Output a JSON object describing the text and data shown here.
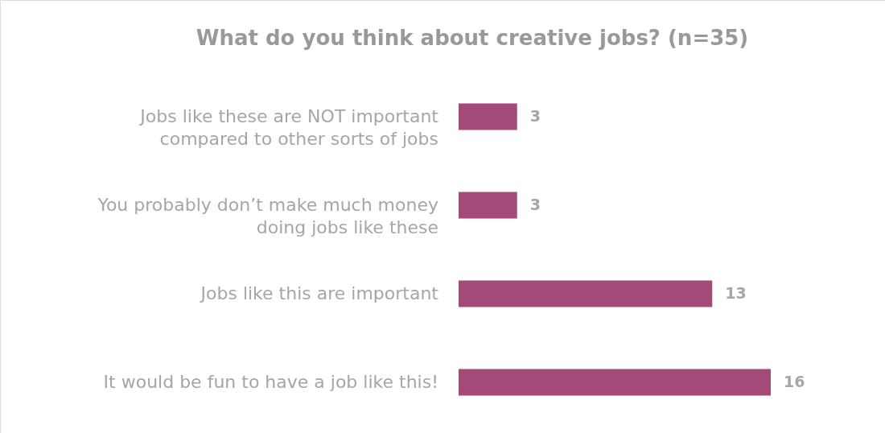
{
  "chart_data": {
    "type": "bar",
    "orientation": "horizontal",
    "data_labels": true,
    "title": "What do you think about creative jobs? (n=35)",
    "categories": [
      "Jobs like these are NOT important compared to other sorts of jobs",
      "You probably don’t make much money doing jobs like these",
      "Jobs like this are important",
      "It would be fun to have a job like this!"
    ],
    "values": [
      3,
      3,
      13,
      16
    ],
    "color": "#a34a78"
  }
}
